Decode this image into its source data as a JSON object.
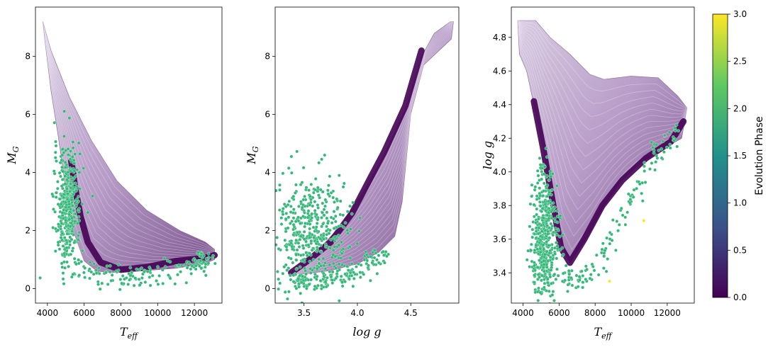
{
  "chart_data": {
    "colorbar": {
      "label": "Evolution Phase",
      "range": [
        0,
        3
      ],
      "ticks": [
        "0.0",
        "0.5",
        "1.0",
        "1.5",
        "2.0",
        "2.5",
        "3.0"
      ],
      "tick_values": [
        0,
        0.5,
        1,
        1.5,
        2,
        2.5,
        3
      ],
      "colormap_stops": [
        "#440154",
        "#3b528b",
        "#21918c",
        "#5ec962",
        "#fde725"
      ],
      "phase_colors": {
        "0": "#440154",
        "2": "#35b779",
        "3": "#fde725"
      },
      "track_color": "#c9b6d3",
      "track_color_dark": "#8a6a98"
    },
    "panels": [
      {
        "type": "scatter",
        "xlabel": "T",
        "xlabel_sub": "eff",
        "ylabel": "M",
        "ylabel_sub": "G",
        "xlim": [
          3350,
          13500
        ],
        "ylim": [
          -0.5,
          9.7
        ],
        "xticks": [
          "4000",
          "6000",
          "8000",
          "10000",
          "12000"
        ],
        "xtick_values": [
          4000,
          6000,
          8000,
          10000,
          12000
        ],
        "yticks": [
          "0",
          "2",
          "4",
          "6",
          "8"
        ],
        "ytick_values": [
          0,
          2,
          4,
          6,
          8
        ],
        "main_sequence": {
          "upper_edge": [
            [
              3750,
              9.2
            ],
            [
              4200,
              8.2
            ],
            [
              5200,
              6.6
            ],
            [
              6400,
              5.1
            ],
            [
              7800,
              3.7
            ],
            [
              9400,
              2.7
            ],
            [
              11200,
              2.0
            ],
            [
              12600,
              1.6
            ],
            [
              13100,
              1.35
            ]
          ],
          "lower_edge": [
            [
              13100,
              1.0
            ],
            [
              12500,
              0.85
            ],
            [
              11000,
              0.7
            ],
            [
              9000,
              0.6
            ],
            [
              7500,
              0.55
            ],
            [
              6700,
              0.6
            ],
            [
              6000,
              0.95
            ],
            [
              5400,
              2.0
            ],
            [
              5000,
              3.4
            ],
            [
              4600,
              5.2
            ],
            [
              4200,
              6.8
            ],
            [
              3850,
              8.6
            ],
            [
              3750,
              9.2
            ]
          ]
        },
        "phase0_band": [
          [
            5300,
            4.4
          ],
          [
            5500,
            3.5
          ],
          [
            5800,
            2.5
          ],
          [
            6200,
            1.6
          ],
          [
            6900,
            0.9
          ],
          [
            8000,
            0.65
          ],
          [
            9500,
            0.75
          ],
          [
            11000,
            0.95
          ],
          [
            12500,
            1.05
          ],
          [
            13100,
            1.15
          ]
        ],
        "phase2_cluster": {
          "center": [
            5100,
            2.8
          ],
          "spread": [
            350,
            1.0
          ],
          "tail": [
            [
              5600,
              0.9
            ],
            [
              7500,
              0.35
            ],
            [
              9500,
              0.4
            ],
            [
              12000,
              0.8
            ],
            [
              12900,
              1.0
            ]
          ]
        },
        "phase3_points": []
      },
      {
        "type": "scatter",
        "xlabel": "log g",
        "xlabel_sub": "",
        "ylabel": "M",
        "ylabel_sub": "G",
        "xlim": [
          3.23,
          4.95
        ],
        "ylim": [
          -0.5,
          9.7
        ],
        "xticks": [
          "3.5",
          "4.0",
          "4.5"
        ],
        "xtick_values": [
          3.5,
          4.0,
          4.5
        ],
        "yticks": [
          "0",
          "2",
          "4",
          "6",
          "8"
        ],
        "ytick_values": [
          0,
          2,
          4,
          6,
          8
        ],
        "main_sequence": {
          "upper_edge": [
            [
              3.38,
              0.55
            ],
            [
              3.6,
              1.2
            ],
            [
              3.85,
              2.2
            ],
            [
              4.05,
              3.3
            ],
            [
              4.25,
              4.6
            ],
            [
              4.45,
              6.2
            ],
            [
              4.6,
              8.0
            ],
            [
              4.72,
              8.8
            ],
            [
              4.87,
              9.2
            ]
          ],
          "lower_edge": [
            [
              4.9,
              9.2
            ],
            [
              4.88,
              8.6
            ],
            [
              4.62,
              7.7
            ],
            [
              4.5,
              6.0
            ],
            [
              4.42,
              3.0
            ],
            [
              4.35,
              1.8
            ],
            [
              4.2,
              1.25
            ],
            [
              4.0,
              0.85
            ],
            [
              3.75,
              0.62
            ],
            [
              3.5,
              0.5
            ],
            [
              3.38,
              0.55
            ]
          ]
        },
        "phase0_band": [
          [
            3.38,
            0.55
          ],
          [
            3.55,
            1.0
          ],
          [
            3.75,
            1.6
          ],
          [
            3.95,
            2.6
          ],
          [
            4.12,
            3.8
          ],
          [
            4.25,
            4.7
          ],
          [
            4.45,
            6.3
          ],
          [
            4.6,
            8.2
          ]
        ],
        "phase2_cluster": {
          "center": [
            3.55,
            2.0
          ],
          "spread": [
            0.18,
            0.9
          ],
          "tail": [
            [
              3.4,
              0.3
            ],
            [
              3.55,
              0.2
            ],
            [
              3.8,
              0.4
            ],
            [
              4.1,
              0.9
            ],
            [
              4.3,
              1.2
            ]
          ]
        },
        "phase3_points": []
      },
      {
        "type": "scatter",
        "xlabel": "T",
        "xlabel_sub": "eff",
        "ylabel": "log g",
        "ylabel_sub": "",
        "xlim": [
          3350,
          13500
        ],
        "ylim": [
          3.22,
          4.98
        ],
        "xticks": [
          "4000",
          "6000",
          "8000",
          "10000",
          "12000"
        ],
        "xtick_values": [
          4000,
          6000,
          8000,
          10000,
          12000
        ],
        "yticks": [
          "3.4",
          "3.6",
          "3.8",
          "4.0",
          "4.2",
          "4.4",
          "4.6",
          "4.8"
        ],
        "ytick_values": [
          3.4,
          3.6,
          3.8,
          4.0,
          4.2,
          4.4,
          4.6,
          4.8
        ],
        "main_sequence": {
          "upper_edge": [
            [
              3700,
              4.9
            ],
            [
              4700,
              4.9
            ],
            [
              5500,
              4.8
            ],
            [
              6600,
              4.7
            ],
            [
              7700,
              4.58
            ],
            [
              8500,
              4.55
            ],
            [
              10000,
              4.57
            ],
            [
              11500,
              4.56
            ],
            [
              12600,
              4.45
            ],
            [
              13100,
              4.38
            ]
          ],
          "lower_edge": [
            [
              13100,
              4.38
            ],
            [
              12800,
              4.2
            ],
            [
              11500,
              4.12
            ],
            [
              10500,
              4.05
            ],
            [
              9500,
              3.95
            ],
            [
              8500,
              3.8
            ],
            [
              7500,
              3.6
            ],
            [
              6600,
              3.46
            ],
            [
              6000,
              3.6
            ],
            [
              5600,
              3.85
            ],
            [
              5100,
              4.15
            ],
            [
              4600,
              4.4
            ],
            [
              4200,
              4.6
            ],
            [
              3800,
              4.7
            ],
            [
              3700,
              4.9
            ]
          ]
        },
        "phase0_band": [
          [
            4600,
            4.42
          ],
          [
            5100,
            4.15
          ],
          [
            5600,
            3.85
          ],
          [
            6100,
            3.55
          ],
          [
            6600,
            3.46
          ],
          [
            7400,
            3.6
          ],
          [
            8400,
            3.8
          ],
          [
            9500,
            3.95
          ],
          [
            10800,
            4.08
          ],
          [
            12200,
            4.18
          ],
          [
            12900,
            4.3
          ]
        ],
        "phase2_cluster": {
          "center": [
            5200,
            3.6
          ],
          "spread": [
            380,
            0.2
          ],
          "tail": [
            [
              5000,
              4.05
            ],
            [
              6500,
              3.35
            ],
            [
              8000,
              3.4
            ],
            [
              9500,
              3.75
            ],
            [
              11000,
              4.05
            ],
            [
              12600,
              4.25
            ]
          ]
        },
        "phase3_points": [
          [
            8800,
            3.35
          ],
          [
            10700,
            3.71
          ]
        ]
      }
    ]
  }
}
